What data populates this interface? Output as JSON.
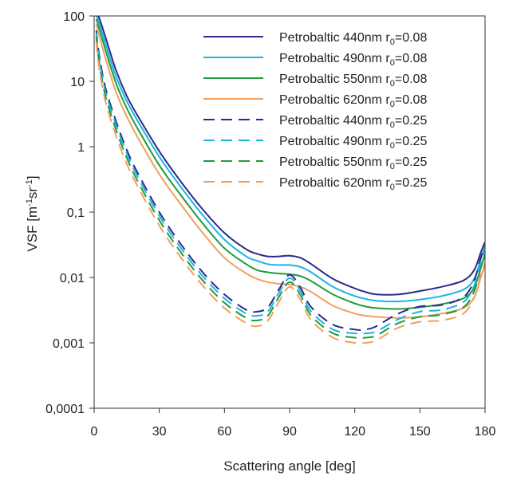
{
  "chart_data": {
    "type": "line",
    "title": "",
    "xlabel": "Scattering angle [deg]",
    "ylabel": "VSF [m",
    "ylabel_parts": [
      "VSF [m",
      "-1",
      "sr",
      "-1",
      "]"
    ],
    "xlim": [
      0,
      180
    ],
    "ylim": [
      0.0001,
      100
    ],
    "yscale": "log",
    "grid": false,
    "legend_position": "top-right",
    "x_ticks": [
      "0",
      "30",
      "60",
      "90",
      "120",
      "150",
      "180"
    ],
    "y_ticks": [
      "100",
      "10",
      "1",
      "0,1",
      "0,01",
      "0,001",
      "0,0001"
    ],
    "x": [
      1,
      2,
      5,
      10,
      15,
      20,
      30,
      40,
      50,
      60,
      70,
      75,
      80,
      85,
      90,
      95,
      100,
      110,
      120,
      125,
      130,
      140,
      150,
      160,
      170,
      175,
      178,
      180
    ],
    "series": [
      {
        "name": "Petrobaltic 440nm r0=0.08",
        "label_parts": [
          "Petrobaltic 440nm r",
          "0",
          "=0.08"
        ],
        "color": "#2a2a8c",
        "dash": "solid",
        "values": [
          100,
          100,
          50,
          15,
          6,
          3,
          0.85,
          0.29,
          0.11,
          0.048,
          0.027,
          0.023,
          0.021,
          0.021,
          0.0215,
          0.02,
          0.016,
          0.0095,
          0.0068,
          0.006,
          0.0055,
          0.0055,
          0.0062,
          0.0072,
          0.009,
          0.013,
          0.024,
          0.035
        ]
      },
      {
        "name": "Petrobaltic 490nm r0=0.08",
        "label_parts": [
          "Petrobaltic 490nm r",
          "0",
          "=0.08"
        ],
        "color": "#19b4e6",
        "dash": "solid",
        "values": [
          100,
          85,
          40,
          12,
          5,
          2.5,
          0.7,
          0.24,
          0.09,
          0.038,
          0.021,
          0.018,
          0.016,
          0.0155,
          0.0155,
          0.0145,
          0.012,
          0.0072,
          0.0052,
          0.0047,
          0.0044,
          0.0043,
          0.0046,
          0.0052,
          0.0065,
          0.0095,
          0.019,
          0.03
        ]
      },
      {
        "name": "Petrobaltic 550nm r0=0.08",
        "label_parts": [
          "Petrobaltic 550nm r",
          "0",
          "=0.08"
        ],
        "color": "#1f9a3c",
        "dash": "solid",
        "values": [
          90,
          70,
          32,
          9.5,
          3.9,
          1.9,
          0.52,
          0.18,
          0.067,
          0.028,
          0.016,
          0.013,
          0.012,
          0.0115,
          0.0112,
          0.0105,
          0.0088,
          0.0055,
          0.004,
          0.0036,
          0.0034,
          0.0033,
          0.0035,
          0.0039,
          0.0048,
          0.007,
          0.014,
          0.023
        ]
      },
      {
        "name": "Petrobaltic 620nm r0=0.08",
        "label_parts": [
          "Petrobaltic 620nm r",
          "0",
          "=0.08"
        ],
        "color": "#f0a060",
        "dash": "solid",
        "values": [
          75,
          55,
          24,
          7,
          2.9,
          1.4,
          0.38,
          0.13,
          0.048,
          0.02,
          0.0115,
          0.0095,
          0.0085,
          0.008,
          0.0078,
          0.0072,
          0.006,
          0.0037,
          0.0028,
          0.0026,
          0.0025,
          0.0024,
          0.0025,
          0.0028,
          0.0034,
          0.005,
          0.01,
          0.016
        ]
      },
      {
        "name": "Petrobaltic 440nm r0=0.25",
        "label_parts": [
          "Petrobaltic 440nm r",
          "0",
          "=0.25"
        ],
        "color": "#2a2a8c",
        "dash": "dashed",
        "values": [
          60,
          30,
          8.5,
          2.5,
          0.9,
          0.4,
          0.1,
          0.032,
          0.012,
          0.0055,
          0.0032,
          0.003,
          0.0035,
          0.0065,
          0.011,
          0.007,
          0.0035,
          0.0019,
          0.0016,
          0.0016,
          0.0018,
          0.0028,
          0.0036,
          0.0038,
          0.005,
          0.009,
          0.02,
          0.03
        ]
      },
      {
        "name": "Petrobaltic 490nm r0=0.25",
        "label_parts": [
          "Petrobaltic 490nm r",
          "0",
          "=0.25"
        ],
        "color": "#19b4e6",
        "dash": "dashed",
        "values": [
          55,
          27,
          7.5,
          2.2,
          0.8,
          0.35,
          0.088,
          0.028,
          0.0105,
          0.0048,
          0.0028,
          0.0026,
          0.003,
          0.0058,
          0.0098,
          0.0062,
          0.003,
          0.0016,
          0.0014,
          0.0014,
          0.0015,
          0.0023,
          0.003,
          0.0032,
          0.0042,
          0.0075,
          0.017,
          0.026
        ]
      },
      {
        "name": "Petrobaltic 550nm r0=0.25",
        "label_parts": [
          "Petrobaltic 550nm r",
          "0",
          "=0.25"
        ],
        "color": "#1f9a3c",
        "dash": "dashed",
        "values": [
          48,
          23,
          6.4,
          1.85,
          0.68,
          0.3,
          0.075,
          0.024,
          0.009,
          0.0041,
          0.0024,
          0.0022,
          0.0026,
          0.005,
          0.0085,
          0.0054,
          0.0026,
          0.0014,
          0.0012,
          0.0012,
          0.0013,
          0.002,
          0.0025,
          0.0027,
          0.0035,
          0.0062,
          0.014,
          0.022
        ]
      },
      {
        "name": "Petrobaltic 620nm r0=0.25",
        "label_parts": [
          "Petrobaltic 620nm r",
          "0",
          "=0.25"
        ],
        "color": "#f0a060",
        "dash": "dashed",
        "values": [
          40,
          19,
          5.3,
          1.5,
          0.55,
          0.25,
          0.062,
          0.02,
          0.0075,
          0.0034,
          0.002,
          0.0018,
          0.0022,
          0.0042,
          0.0072,
          0.0046,
          0.0022,
          0.0012,
          0.001,
          0.001,
          0.0011,
          0.0017,
          0.0021,
          0.0022,
          0.0028,
          0.005,
          0.011,
          0.017
        ]
      }
    ]
  }
}
